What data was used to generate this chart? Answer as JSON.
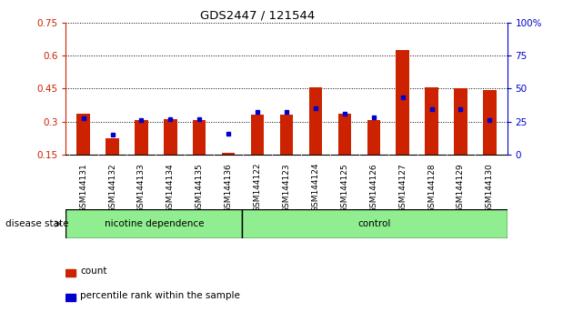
{
  "title": "GDS2447 / 121544",
  "samples": [
    "GSM144131",
    "GSM144132",
    "GSM144133",
    "GSM144134",
    "GSM144135",
    "GSM144136",
    "GSM144122",
    "GSM144123",
    "GSM144124",
    "GSM144125",
    "GSM144126",
    "GSM144127",
    "GSM144128",
    "GSM144129",
    "GSM144130"
  ],
  "red_values": [
    0.335,
    0.225,
    0.305,
    0.31,
    0.305,
    0.16,
    0.33,
    0.33,
    0.455,
    0.335,
    0.305,
    0.625,
    0.455,
    0.45,
    0.445
  ],
  "blue_values": [
    0.315,
    0.24,
    0.305,
    0.31,
    0.31,
    0.245,
    0.345,
    0.345,
    0.36,
    0.335,
    0.32,
    0.41,
    0.355,
    0.355,
    0.305
  ],
  "group1_label": "nicotine dependence",
  "group2_label": "control",
  "group1_count": 6,
  "group2_count": 9,
  "ylim_left": [
    0.15,
    0.75
  ],
  "ylim_right": [
    0,
    100
  ],
  "yticks_left": [
    0.15,
    0.3,
    0.45,
    0.6,
    0.75
  ],
  "yticks_right": [
    0,
    25,
    50,
    75,
    100
  ],
  "group1_color": "#90EE90",
  "group2_color": "#90EE90",
  "red_color": "#CC2200",
  "blue_color": "#0000CC",
  "plot_bg": "#FFFFFF",
  "xticklabel_bg": "#C8C8C8",
  "bar_width": 0.45,
  "legend_labels": [
    "count",
    "percentile rank within the sample"
  ]
}
